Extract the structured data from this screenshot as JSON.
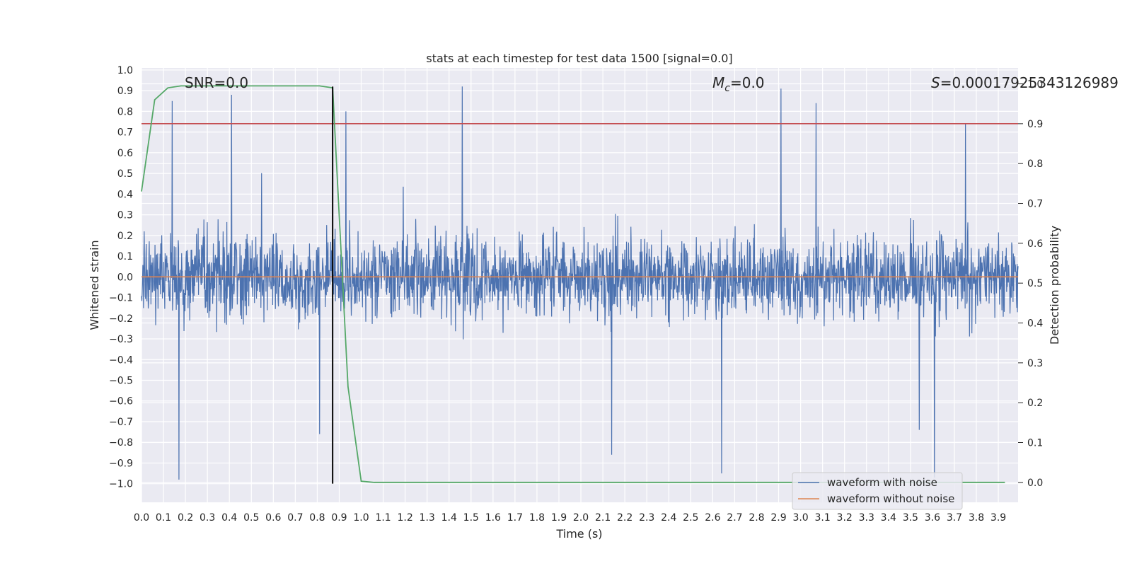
{
  "chart_data": {
    "type": "line",
    "title": "stats at each timestep for test data 1500 [signal=0.0]",
    "xlabel": "Time (s)",
    "ylabel": "Whitened strain",
    "y2label": "Detection probability",
    "xlim": [
      0.0,
      3.99
    ],
    "ylim": [
      -1.09,
      1.01
    ],
    "y2lim": [
      -0.05,
      1.04
    ],
    "grid": true,
    "x_ticks": [
      "0.0",
      "0.1",
      "0.2",
      "0.3",
      "0.4",
      "0.5",
      "0.6",
      "0.7",
      "0.8",
      "0.9",
      "1.0",
      "1.1",
      "1.2",
      "1.3",
      "1.4",
      "1.5",
      "1.6",
      "1.7",
      "1.8",
      "1.9",
      "2.0",
      "2.1",
      "2.2",
      "2.3",
      "2.4",
      "2.5",
      "2.6",
      "2.7",
      "2.8",
      "2.9",
      "3.0",
      "3.1",
      "3.2",
      "3.3",
      "3.4",
      "3.5",
      "3.6",
      "3.7",
      "3.8",
      "3.9"
    ],
    "y_ticks": [
      "1.0",
      "0.9",
      "0.8",
      "0.7",
      "0.6",
      "0.5",
      "0.4",
      "0.3",
      "0.2",
      "0.1",
      "0.0",
      "−0.1",
      "−0.2",
      "−0.3",
      "−0.4",
      "−0.5",
      "−0.6",
      "−0.7",
      "−0.8",
      "−0.9",
      "−1.0"
    ],
    "y2_ticks": [
      "1.0",
      "0.9",
      "0.8",
      "0.7",
      "0.6",
      "0.5",
      "0.4",
      "0.3",
      "0.2",
      "0.1",
      "0.0"
    ],
    "annotations": {
      "snr": "SNR=0.0",
      "mc_symbol": "M",
      "mc_subscript": "c",
      "mc_value": "=0.0",
      "s_symbol": "S",
      "s_value": "=0.00017925343126989"
    },
    "series": [
      {
        "name": "waveform with noise",
        "axis": "left",
        "color": "#4c72b0",
        "description": "dense whitened noise, approx ±0.5 with spikes to about ±1.0",
        "seed": 1500,
        "spikes": [
          [
            0.17,
            -0.98
          ],
          [
            0.14,
            0.85
          ],
          [
            0.41,
            0.88
          ],
          [
            0.93,
            0.8
          ],
          [
            1.46,
            0.92
          ],
          [
            2.91,
            0.91
          ],
          [
            3.07,
            0.84
          ],
          [
            2.64,
            -0.95
          ],
          [
            3.61,
            -0.97
          ],
          [
            3.75,
            0.74
          ],
          [
            2.14,
            -0.86
          ],
          [
            3.54,
            -0.74
          ],
          [
            0.81,
            -0.76
          ]
        ]
      },
      {
        "name": "waveform without noise",
        "axis": "left",
        "color": "#dd8452",
        "x": [
          0.0,
          3.99
        ],
        "y": [
          0.0,
          0.0
        ]
      },
      {
        "name": "detection probability",
        "axis": "right",
        "color": "#55a868",
        "x": [
          0.0,
          0.06,
          0.12,
          0.18,
          0.81,
          0.87,
          0.94,
          1.0,
          1.06,
          3.93
        ],
        "y": [
          0.73,
          0.96,
          0.99,
          0.995,
          0.995,
          0.99,
          0.24,
          0.003,
          0.0,
          0.0
        ]
      }
    ],
    "threshold": {
      "axis": "right",
      "value": 0.9,
      "color": "#c44e52"
    },
    "marker_line": {
      "x": 0.87,
      "y_top": 0.92,
      "y_bottom": -1.0,
      "color": "#000000"
    },
    "legend": {
      "location": "lower right",
      "entries": [
        {
          "label": "waveform with noise",
          "color": "#4c72b0"
        },
        {
          "label": "waveform without noise",
          "color": "#dd8452"
        }
      ]
    }
  }
}
